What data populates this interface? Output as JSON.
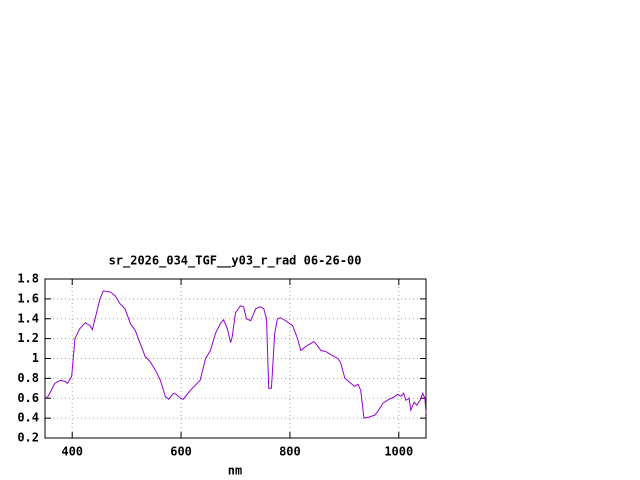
{
  "chart_data": {
    "type": "line",
    "title": "sr_2026_034_TGF__y03_r_rad 06-26-00",
    "x_label": "nm",
    "color": "#9400d3",
    "grid": true,
    "xlim": [
      350,
      1050
    ],
    "xticks": [
      400,
      600,
      800,
      1000
    ],
    "ylim": [
      0.2,
      1.8
    ],
    "yticks": [
      0.2,
      0.4,
      0.6,
      0.8,
      1,
      1.2,
      1.4,
      1.6,
      1.8
    ],
    "x": [
      350,
      356,
      368,
      378,
      387,
      391,
      396,
      399,
      405,
      414,
      424,
      433,
      437,
      442,
      451,
      457,
      470,
      479,
      488,
      497,
      507,
      516,
      525,
      534,
      543,
      553,
      562,
      571,
      577,
      586,
      591,
      599,
      604,
      617,
      626,
      635,
      645,
      654,
      663,
      672,
      678,
      685,
      691,
      694,
      700,
      709,
      715,
      720,
      728,
      737,
      746,
      752,
      757,
      761,
      766,
      772,
      777,
      783,
      792,
      805,
      814,
      820,
      829,
      838,
      844,
      849,
      857,
      866,
      875,
      888,
      893,
      901,
      912,
      919,
      925,
      930,
      936,
      945,
      956,
      963,
      971,
      982,
      991,
      998,
      1004,
      1009,
      1013,
      1019,
      1022,
      1028,
      1033,
      1039,
      1044,
      1048,
      1050
    ],
    "values": [
      0.6,
      0.62,
      0.75,
      0.78,
      0.77,
      0.75,
      0.79,
      0.82,
      1.2,
      1.3,
      1.36,
      1.33,
      1.29,
      1.4,
      1.6,
      1.68,
      1.67,
      1.63,
      1.55,
      1.5,
      1.35,
      1.28,
      1.15,
      1.02,
      0.97,
      0.88,
      0.78,
      0.62,
      0.59,
      0.65,
      0.64,
      0.6,
      0.59,
      0.68,
      0.73,
      0.78,
      1.0,
      1.08,
      1.25,
      1.35,
      1.39,
      1.3,
      1.16,
      1.22,
      1.46,
      1.53,
      1.52,
      1.4,
      1.38,
      1.5,
      1.52,
      1.5,
      1.4,
      0.7,
      0.7,
      1.25,
      1.4,
      1.41,
      1.38,
      1.33,
      1.2,
      1.08,
      1.12,
      1.15,
      1.17,
      1.14,
      1.08,
      1.07,
      1.04,
      1.0,
      0.96,
      0.8,
      0.75,
      0.72,
      0.74,
      0.68,
      0.4,
      0.41,
      0.43,
      0.48,
      0.55,
      0.59,
      0.61,
      0.64,
      0.62,
      0.65,
      0.58,
      0.6,
      0.48,
      0.56,
      0.53,
      0.58,
      0.65,
      0.6,
      0.45
    ]
  }
}
